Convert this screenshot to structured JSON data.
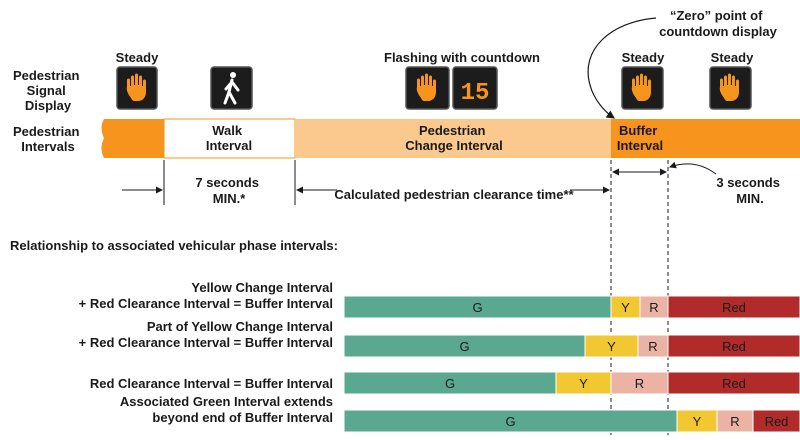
{
  "top": {
    "row_label_signal": [
      "Pedestrian",
      "Signal",
      "Display"
    ],
    "row_label_intervals": [
      "Pedestrian",
      "Intervals"
    ],
    "signal_labels": {
      "steady_1": "Steady",
      "flashing": "Flashing with countdown",
      "steady_2": "Steady",
      "steady_3": "Steady"
    },
    "countdown_value": "15",
    "zero_point_note": [
      "“Zero” point of",
      "countdown display"
    ],
    "intervals": {
      "walk": [
        "Walk",
        "Interval"
      ],
      "change": [
        "Pedestrian",
        "Change Interval"
      ],
      "buffer": [
        "Buffer",
        "Interval"
      ]
    },
    "dimensions": {
      "walk_min": [
        "7 seconds",
        "MIN.*"
      ],
      "clearance": "Calculated pedestrian clearance time**",
      "buffer_min": [
        "3 seconds",
        "MIN."
      ]
    }
  },
  "relationship_heading": "Relationship to associated vehicular phase intervals:",
  "rows": [
    {
      "label": [
        "Yellow Change Interval",
        "+ Red Clearance Interval = Buffer Interval"
      ],
      "segments": [
        {
          "kind": "green",
          "label": "G"
        },
        {
          "kind": "yellow",
          "label": "Y"
        },
        {
          "kind": "redclear",
          "label": "R"
        },
        {
          "kind": "red",
          "label": "Red"
        }
      ]
    },
    {
      "label": [
        "Part of Yellow Change Interval",
        "+ Red Clearance Interval = Buffer Interval"
      ],
      "segments": [
        {
          "kind": "green",
          "label": "G"
        },
        {
          "kind": "yellow",
          "label": "Y"
        },
        {
          "kind": "redclear",
          "label": "R"
        },
        {
          "kind": "red",
          "label": "Red"
        }
      ]
    },
    {
      "label": [
        "Red Clearance Interval = Buffer Interval"
      ],
      "segments": [
        {
          "kind": "green",
          "label": "G"
        },
        {
          "kind": "yellow",
          "label": "Y"
        },
        {
          "kind": "redclear",
          "label": "R"
        },
        {
          "kind": "red",
          "label": "Red"
        }
      ]
    },
    {
      "label": [
        "Associated Green Interval extends",
        "beyond end of Buffer Interval"
      ],
      "segments": [
        {
          "kind": "green",
          "label": "G"
        },
        {
          "kind": "yellow",
          "label": "Y"
        },
        {
          "kind": "redclear",
          "label": "R"
        },
        {
          "kind": "red",
          "label": "Red"
        }
      ]
    }
  ],
  "colors": {
    "orange": "#f7941d",
    "light_orange": "#fbc98d",
    "green": "#5aa88f",
    "yellow": "#f2c832",
    "red_clearance": "#eab3a4",
    "red": "#b22b2b",
    "signal_dark": "#1c1c1c",
    "hand": "#f7941d"
  },
  "icons": [
    "hand-icon",
    "walking-person-icon",
    "countdown-display"
  ]
}
